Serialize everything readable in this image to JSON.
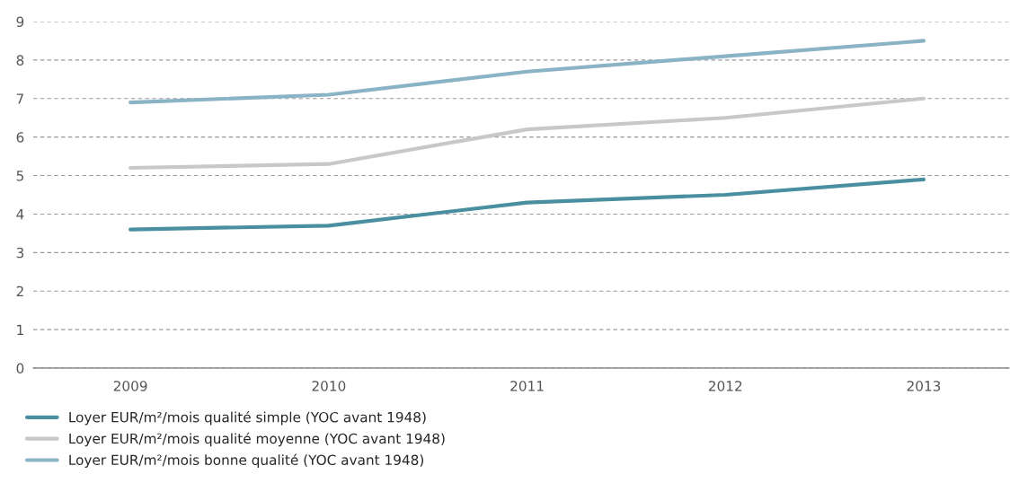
{
  "chart_data": {
    "type": "line",
    "categories": [
      "2009",
      "2010",
      "2011",
      "2012",
      "2013"
    ],
    "series": [
      {
        "name": "Loyer EUR/m²/mois qualité simple (YOC avant 1948)",
        "color": "#4a8fa0",
        "values": [
          3.6,
          3.7,
          4.3,
          4.5,
          4.9
        ]
      },
      {
        "name": "Loyer EUR/m²/mois qualité moyenne (YOC avant 1948)",
        "color": "#c8c8c8",
        "values": [
          5.2,
          5.3,
          6.2,
          6.5,
          7.0
        ]
      },
      {
        "name": "Loyer EUR/m²/mois bonne qualité (YOC avant 1948)",
        "color": "#8ab4c6",
        "values": [
          6.9,
          7.1,
          7.7,
          8.1,
          8.5
        ]
      }
    ],
    "ylim": [
      0,
      9
    ],
    "yticks": [
      0,
      1,
      2,
      3,
      4,
      5,
      6,
      7,
      8,
      9
    ],
    "grid": "y",
    "legend": "bottom left",
    "marker": "none",
    "line_style": "solid"
  }
}
